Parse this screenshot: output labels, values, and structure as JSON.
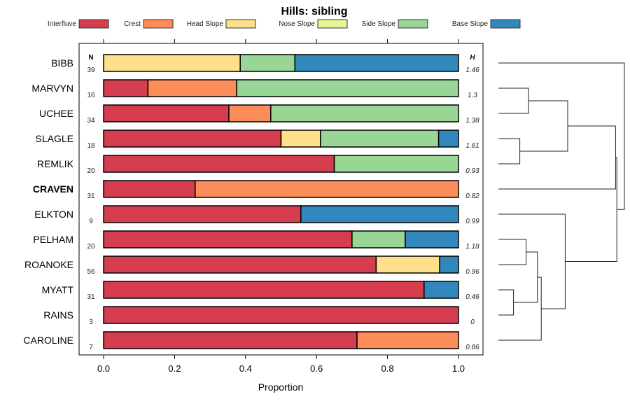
{
  "chart_data": {
    "type": "bar",
    "stacked": true,
    "orientation": "horizontal",
    "title": "Hills: sibling",
    "xlabel": "Proportion",
    "ylabel": "",
    "xlim": [
      0,
      1
    ],
    "x_ticks": [
      "0.0",
      "0.2",
      "0.4",
      "0.6",
      "0.8",
      "1.0"
    ],
    "legend_placement": "top",
    "n_header": "N",
    "h_header": "H",
    "highlight_category": "CRAVEN",
    "series_names": [
      "Interfluve",
      "Crest",
      "Head Slope",
      "Nose Slope",
      "Side Slope",
      "Base Slope"
    ],
    "series_colors": [
      "#D53E4F",
      "#FC8D59",
      "#FEE08B",
      "#E6F598",
      "#99D594",
      "#3288BD"
    ],
    "categories": [
      "BIBB",
      "MARVYN",
      "UCHEE",
      "SLAGLE",
      "REMLIK",
      "CRAVEN",
      "ELKTON",
      "PELHAM",
      "ROANOKE",
      "MYATT",
      "RAINS",
      "CAROLINE"
    ],
    "n": [
      "39",
      "16",
      "34",
      "18",
      "20",
      "31",
      "9",
      "20",
      "56",
      "31",
      "3",
      "7"
    ],
    "h": [
      "1.46",
      "1.3",
      "1.38",
      "1.61",
      "0.93",
      "0.82",
      "0.99",
      "1.18",
      "0.96",
      "0.46",
      "0",
      "0.86"
    ],
    "series": [
      {
        "name": "Interfluve",
        "values": [
          0,
          0.125,
          0.353,
          0.5,
          0.65,
          0.258,
          0.556,
          0.7,
          0.768,
          0.903,
          1.0,
          0.714
        ]
      },
      {
        "name": "Crest",
        "values": [
          0,
          0.25,
          0.118,
          0,
          0,
          0.742,
          0,
          0,
          0,
          0,
          0,
          0.286
        ]
      },
      {
        "name": "Head Slope",
        "values": [
          0.385,
          0,
          0,
          0.111,
          0,
          0,
          0,
          0,
          0.179,
          0,
          0,
          0
        ]
      },
      {
        "name": "Nose Slope",
        "values": [
          0,
          0,
          0,
          0,
          0,
          0,
          0,
          0,
          0,
          0,
          0,
          0
        ]
      },
      {
        "name": "Side Slope",
        "values": [
          0.154,
          0.625,
          0.529,
          0.333,
          0.35,
          0,
          0,
          0.15,
          0,
          0,
          0,
          0
        ]
      },
      {
        "name": "Base Slope",
        "values": [
          0.461,
          0,
          0,
          0.056,
          0,
          0,
          0.444,
          0.15,
          0.053,
          0.097,
          0,
          0
        ]
      }
    ],
    "dendrogram": {
      "leaf_order": [
        "BIBB",
        "MARVYN",
        "UCHEE",
        "SLAGLE",
        "REMLIK",
        "CRAVEN",
        "ELKTON",
        "PELHAM",
        "ROANOKE",
        "MYATT",
        "RAINS",
        "CAROLINE"
      ],
      "merges": [
        {
          "id": "m1",
          "a": "MARVYN",
          "b": "UCHEE",
          "height": 0.24
        },
        {
          "id": "m2",
          "a": "SLAGLE",
          "b": "REMLIK",
          "height": 0.17
        },
        {
          "id": "m3",
          "a": "m1",
          "b": "m2",
          "height": 0.55
        },
        {
          "id": "m4",
          "a": "m3",
          "b": "CRAVEN",
          "height": 0.93
        },
        {
          "id": "m5",
          "a": "PELHAM",
          "b": "ROANOKE",
          "height": 0.22
        },
        {
          "id": "m6",
          "a": "MYATT",
          "b": "RAINS",
          "height": 0.12
        },
        {
          "id": "m7",
          "a": "m5",
          "b": "m6",
          "height": 0.31
        },
        {
          "id": "m8",
          "a": "m7",
          "b": "CAROLINE",
          "height": 0.34
        },
        {
          "id": "m9",
          "a": "ELKTON",
          "b": "m8",
          "height": 0.53
        },
        {
          "id": "m10",
          "a": "m4",
          "b": "m9",
          "height": 0.94
        },
        {
          "id": "m11",
          "a": "BIBB",
          "b": "m10",
          "height": 1.0
        }
      ]
    }
  }
}
